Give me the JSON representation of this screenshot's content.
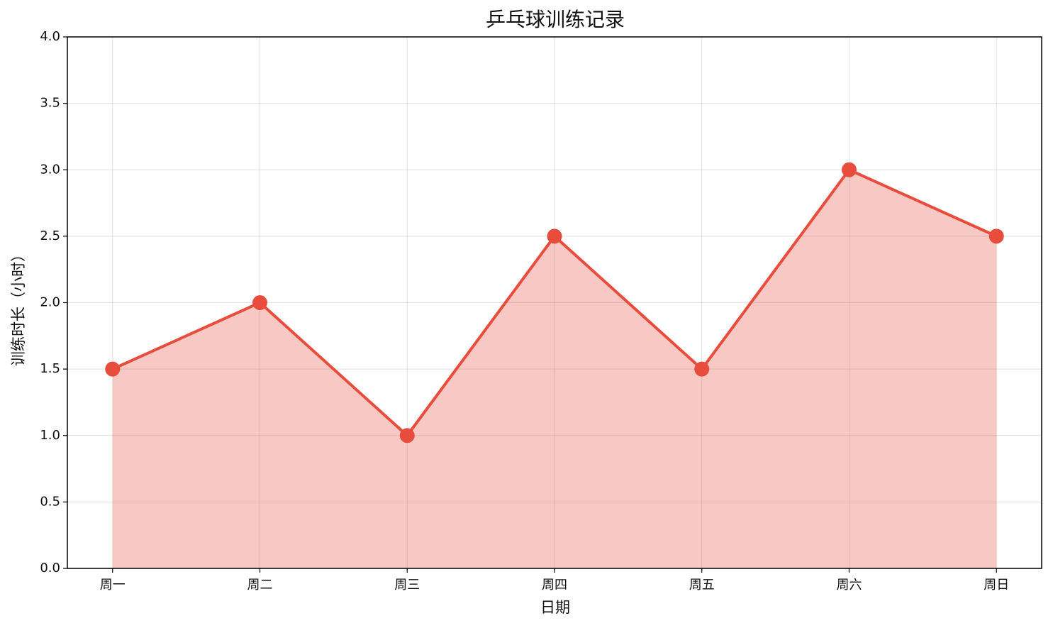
{
  "chart_data": {
    "type": "area",
    "title": "乒乓球训练记录",
    "x_label": "日期",
    "y_label": "训练时长（小时）",
    "categories": [
      "周一",
      "周二",
      "周三",
      "周四",
      "周五",
      "周六",
      "周日"
    ],
    "values": [
      1.5,
      2,
      1,
      2.5,
      1.5,
      3,
      2.5
    ],
    "color": "#e74c3c",
    "ylim": [
      0,
      4
    ],
    "yticks": [
      {
        "value": 0,
        "label": "0.0"
      },
      0.5,
      {
        "value": 1,
        "label": "1.0"
      },
      1.5,
      {
        "value": 2,
        "label": "2.0"
      },
      2.5,
      {
        "value": 3,
        "label": "3.0"
      },
      3.5,
      {
        "value": 4,
        "label": "4.0"
      }
    ],
    "grid": true
  }
}
